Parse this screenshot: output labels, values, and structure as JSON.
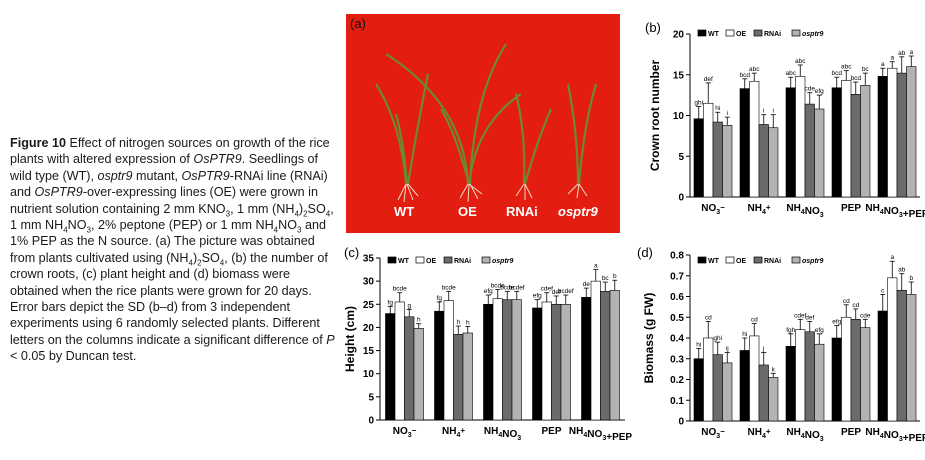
{
  "caption": {
    "figure_label": "Figure 10",
    "text_parts": [
      {
        "t": "Effect of nitrogen sources on growth of the rice plants with altered expression of ",
        "s": ""
      },
      {
        "t": "OsPTR9",
        "s": "i"
      },
      {
        "t": ". Seedlings of wild type (WT), ",
        "s": ""
      },
      {
        "t": "osptr9",
        "s": "i"
      },
      {
        "t": " mutant, ",
        "s": ""
      },
      {
        "t": "OsPTR9",
        "s": "i"
      },
      {
        "t": "-RNAi line (RNAi) and ",
        "s": ""
      },
      {
        "t": "OsPTR9",
        "s": "i"
      },
      {
        "t": "-over-expressing lines (OE) were grown in nutrient solution containing 2 mm KNO",
        "s": ""
      },
      {
        "t": "3",
        "s": "sub"
      },
      {
        "t": ", 1 mm (NH",
        "s": ""
      },
      {
        "t": "4",
        "s": "sub"
      },
      {
        "t": ")",
        "s": ""
      },
      {
        "t": "2",
        "s": "sub"
      },
      {
        "t": "SO",
        "s": ""
      },
      {
        "t": "4",
        "s": "sub"
      },
      {
        "t": ", 1 mm NH",
        "s": ""
      },
      {
        "t": "4",
        "s": "sub"
      },
      {
        "t": "NO",
        "s": ""
      },
      {
        "t": "3",
        "s": "sub"
      },
      {
        "t": ", 2% peptone (PEP) or 1 mm NH",
        "s": ""
      },
      {
        "t": "4",
        "s": "sub"
      },
      {
        "t": "NO",
        "s": ""
      },
      {
        "t": "3",
        "s": "sub"
      },
      {
        "t": " and 1% PEP as the N source. (a) The picture was obtained from plants cultivated using (NH",
        "s": ""
      },
      {
        "t": "4",
        "s": "sub"
      },
      {
        "t": ")",
        "s": ""
      },
      {
        "t": "2",
        "s": "sub"
      },
      {
        "t": "SO",
        "s": ""
      },
      {
        "t": "4",
        "s": "sub"
      },
      {
        "t": ", (b) the number of crown roots, (c) plant height and (d) biomass were obtained when the rice plants were grown for 20 days. Error bars depict the SD (b–d) from 3 independent experiments using 6 randomly selected plants. Different letters on the columns indicate a significant difference of ",
        "s": ""
      },
      {
        "t": "P",
        "s": "i"
      },
      {
        "t": " < 0.05 by Duncan test.",
        "s": ""
      }
    ]
  },
  "photo": {
    "label": "(a)",
    "plant_labels": [
      "WT",
      "OE",
      "RNAi",
      "osptr9"
    ],
    "background": "#e31d0f"
  },
  "legend_labels": [
    "WT",
    "OE",
    "RNAi",
    "osptr9"
  ],
  "series_colors": [
    "#000000",
    "#ffffff",
    "#6b6b6b",
    "#b3b3b3"
  ],
  "categories": [
    "NO3⁻",
    "NH4⁺",
    "NH4NO3",
    "PEP",
    "NH4NO3+PEP"
  ],
  "chart_data": [
    {
      "type": "bar",
      "panel": "(b)",
      "ylabel": "Crown root number",
      "ylim": [
        0,
        20
      ],
      "yticks": [
        0,
        5,
        10,
        15,
        20
      ],
      "series": [
        {
          "name": "WT",
          "values": [
            9.6,
            13.3,
            13.4,
            13.4,
            14.8
          ],
          "err": [
            1.5,
            1.2,
            1.3,
            1.3,
            1.0
          ],
          "letters": [
            "ghi",
            "bcd",
            "abc",
            "bcd",
            "a"
          ]
        },
        {
          "name": "OE",
          "values": [
            11.5,
            14.2,
            14.8,
            14.3,
            15.8
          ],
          "err": [
            2.5,
            1.0,
            1.4,
            1.2,
            0.8
          ],
          "letters": [
            "def",
            "abc",
            "abc",
            "abc",
            "a"
          ]
        },
        {
          "name": "RNAi",
          "values": [
            9.2,
            8.9,
            11.4,
            12.6,
            15.2
          ],
          "err": [
            1.2,
            1.2,
            1.4,
            1.5,
            2.0
          ],
          "letters": [
            "hi",
            "i",
            "cde",
            "bcd",
            "ab"
          ]
        },
        {
          "name": "osptr9",
          "values": [
            8.8,
            8.5,
            10.8,
            13.7,
            16.0
          ],
          "err": [
            1.0,
            1.6,
            1.7,
            1.5,
            1.3
          ],
          "letters": [
            "i",
            "i",
            "efg",
            "bc",
            "a"
          ]
        }
      ],
      "extra_letters": [
        {
          "cat": 2,
          "series": 2,
          "text": "fgh"
        },
        {
          "cat": 3,
          "series": 2,
          "text": "bcd"
        }
      ]
    },
    {
      "type": "bar",
      "panel": "(c)",
      "ylabel": "Height (cm)",
      "ylim": [
        0,
        35
      ],
      "yticks": [
        0,
        5,
        10,
        15,
        20,
        25,
        30,
        35
      ],
      "series": [
        {
          "name": "WT",
          "values": [
            23.0,
            23.5,
            25.0,
            24.2,
            26.5
          ],
          "err": [
            1.5,
            2.0,
            2.0,
            1.8,
            2.0
          ],
          "letters": [
            "fg",
            "fg",
            "efg",
            "efg",
            "de"
          ]
        },
        {
          "name": "OE",
          "values": [
            25.5,
            25.8,
            26.2,
            25.5,
            30.0
          ],
          "err": [
            2.0,
            2.0,
            2.0,
            2.0,
            2.5
          ],
          "letters": [
            "bcde",
            "bcde",
            "bcde",
            "cdef",
            "a"
          ]
        },
        {
          "name": "RNAi",
          "values": [
            22.3,
            18.5,
            26.0,
            25.0,
            27.8
          ],
          "err": [
            1.6,
            1.8,
            1.8,
            1.8,
            2.0
          ],
          "letters": [
            "g",
            "h",
            "bcde",
            "def",
            "bc"
          ]
        },
        {
          "name": "osptr9",
          "values": [
            19.8,
            18.8,
            26.0,
            25.0,
            28.0
          ],
          "err": [
            1.0,
            1.4,
            1.8,
            2.0,
            2.2
          ],
          "letters": [
            "h",
            "h",
            "bcdef",
            "bcdef",
            "b"
          ]
        }
      ]
    },
    {
      "type": "bar",
      "panel": "(d)",
      "ylabel": "Biomass (g FW)",
      "ylim": [
        0,
        0.8
      ],
      "yticks": [
        0,
        0.1,
        0.2,
        0.3,
        0.4,
        0.5,
        0.6,
        0.7,
        0.8
      ],
      "series": [
        {
          "name": "WT",
          "values": [
            0.3,
            0.34,
            0.36,
            0.4,
            0.53
          ],
          "err": [
            0.05,
            0.06,
            0.06,
            0.06,
            0.08
          ],
          "letters": [
            "hi",
            "hi",
            "fgh",
            "efg",
            "c"
          ]
        },
        {
          "name": "OE",
          "values": [
            0.4,
            0.41,
            0.44,
            0.5,
            0.69
          ],
          "err": [
            0.08,
            0.06,
            0.05,
            0.06,
            0.08
          ],
          "letters": [
            "cd",
            "cd",
            "cdef",
            "cd",
            "a"
          ]
        },
        {
          "name": "RNAi",
          "values": [
            0.32,
            0.27,
            0.43,
            0.49,
            0.63
          ],
          "err": [
            0.06,
            0.06,
            0.05,
            0.05,
            0.08
          ],
          "letters": [
            "ghi",
            "j",
            "def",
            "cd",
            "ab"
          ]
        },
        {
          "name": "osptr9",
          "values": [
            0.28,
            0.21,
            0.37,
            0.45,
            0.61
          ],
          "err": [
            0.05,
            0.02,
            0.05,
            0.04,
            0.06
          ],
          "letters": [
            "ij",
            "k",
            "efg",
            "cde",
            "b"
          ]
        }
      ]
    }
  ]
}
